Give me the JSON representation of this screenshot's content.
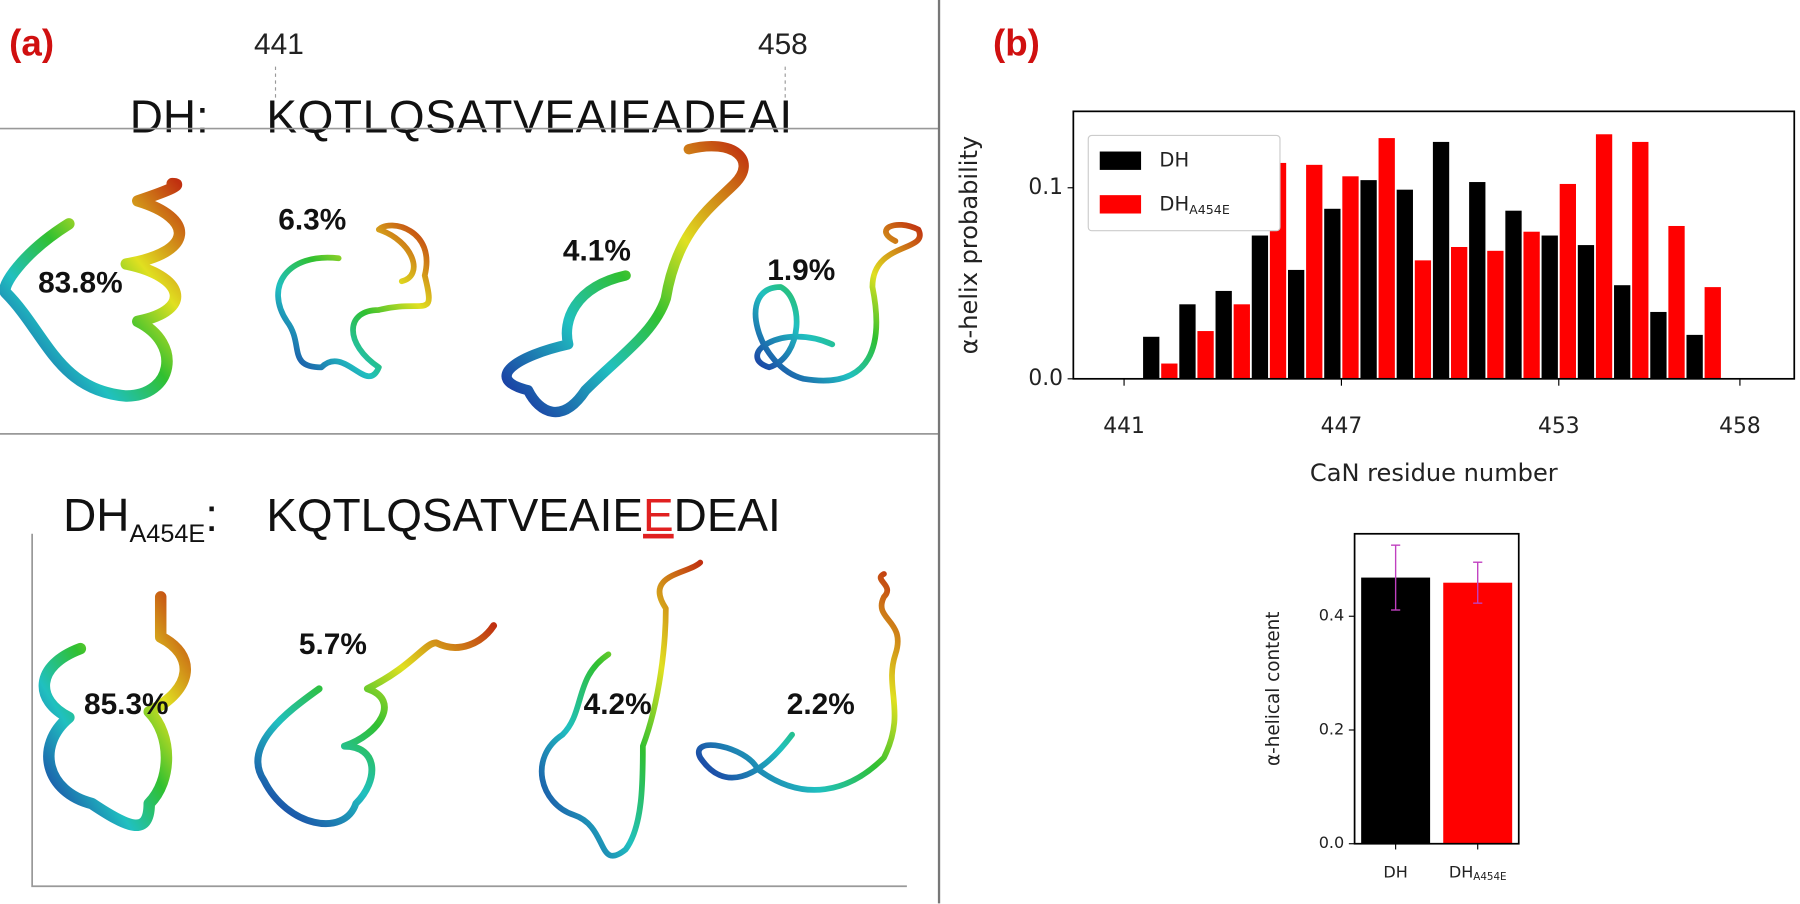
{
  "panel_a": {
    "label": "(a)",
    "positions": [
      "441",
      "458"
    ],
    "wild_type": {
      "name": "DH:",
      "sequence": "KQTLQSATVEAIEADEAI",
      "populations": [
        "83.8%",
        "6.3%",
        "4.1%",
        "1.9%"
      ]
    },
    "mutant": {
      "name": "DH",
      "name_subscript": "A454E",
      "colon": ":",
      "sequence_before": "KQTLQSATVEAIE",
      "mutation": "E",
      "sequence_after": "DEAI",
      "populations": [
        "85.3%",
        "5.7%",
        "4.2%",
        "2.2%"
      ]
    }
  },
  "panel_b": {
    "label": "(b)"
  },
  "chart_data": [
    {
      "type": "bar",
      "ylabel": "α-helix probability",
      "xlabel": "CaN residue number",
      "x": [
        441,
        442,
        443,
        444,
        445,
        446,
        447,
        448,
        449,
        450,
        451,
        452,
        453,
        454,
        455,
        456,
        457,
        458
      ],
      "xlim": [
        439.6,
        459.5
      ],
      "xticks": [
        441,
        447,
        453,
        458
      ],
      "ylim": [
        0,
        0.14
      ],
      "yticks": [
        {
          "value": 0,
          "label": "0.0"
        },
        0.1
      ],
      "legend": "upper left",
      "series": [
        {
          "name": "DH",
          "color": "#000000",
          "values": [
            0,
            0.022,
            0.039,
            0.046,
            0.075,
            0.057,
            0.089,
            0.104,
            0.099,
            0.124,
            0.103,
            0.088,
            0.075,
            0.07,
            0.049,
            0.035,
            0.023,
            0
          ]
        },
        {
          "name": "DH",
          "name_subscript": "A454E",
          "color": "#ff0000",
          "values": [
            0,
            0.008,
            0.025,
            0.039,
            0.113,
            0.112,
            0.106,
            0.126,
            0.062,
            0.069,
            0.067,
            0.077,
            0.102,
            0.128,
            0.124,
            0.08,
            0.048,
            0
          ]
        }
      ]
    },
    {
      "type": "bar",
      "ylabel": "α-helical content",
      "categories": [
        "DH",
        "DH"
      ],
      "category_subscripts": [
        null,
        "A454E"
      ],
      "values": [
        0.468,
        0.459
      ],
      "errors": [
        0.057,
        0.036
      ],
      "colors": [
        "#000000",
        "#ff0000"
      ],
      "error_color": "#c040c0",
      "ylim": [
        0,
        0.545
      ],
      "yticks": [
        {
          "value": 0,
          "label": "0.0"
        },
        0.2,
        0.4
      ]
    }
  ]
}
